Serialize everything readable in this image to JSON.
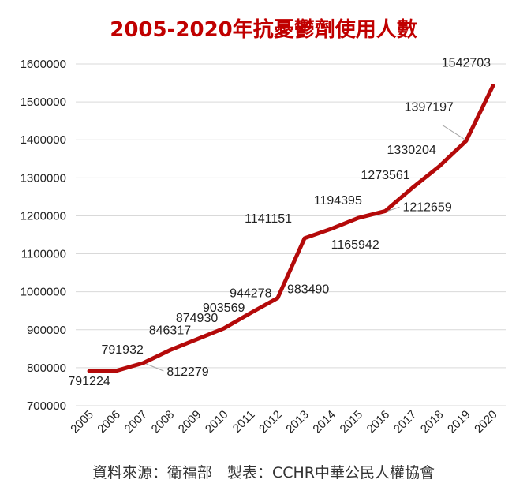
{
  "chart_data": {
    "type": "line",
    "title": "2005-2020年抗憂鬱劑使用人數",
    "footer": "資料來源：衛福部　製表：CCHR中華公民人權協會",
    "categories": [
      "2005",
      "2006",
      "2007",
      "2008",
      "2009",
      "2010",
      "2011",
      "2012",
      "2013",
      "2014",
      "2015",
      "2016",
      "2017",
      "2018",
      "2019",
      "2020"
    ],
    "series": [
      {
        "values": [
          791224,
          791932,
          812279,
          846317,
          874930,
          903569,
          944278,
          983490,
          1141151,
          1165942,
          1194395,
          1212659,
          1273561,
          1330204,
          1397197,
          1542703
        ]
      }
    ],
    "data_labels": [
      "791224",
      "791932",
      "812279",
      "846317",
      "874930",
      "903569",
      "944278",
      "983490",
      "1141151",
      "1165942",
      "1194395",
      "1212659",
      "1273561",
      "1330204",
      "1397197",
      "1542703"
    ],
    "y_ticks": [
      "700000",
      "800000",
      "900000",
      "1000000",
      "1100000",
      "1200000",
      "1300000",
      "1400000",
      "1500000",
      "1600000"
    ],
    "ylim": [
      700000,
      1600000
    ],
    "grid": true,
    "legend": "none",
    "line_color": "#b40a0a",
    "title_color": "#c00000"
  }
}
